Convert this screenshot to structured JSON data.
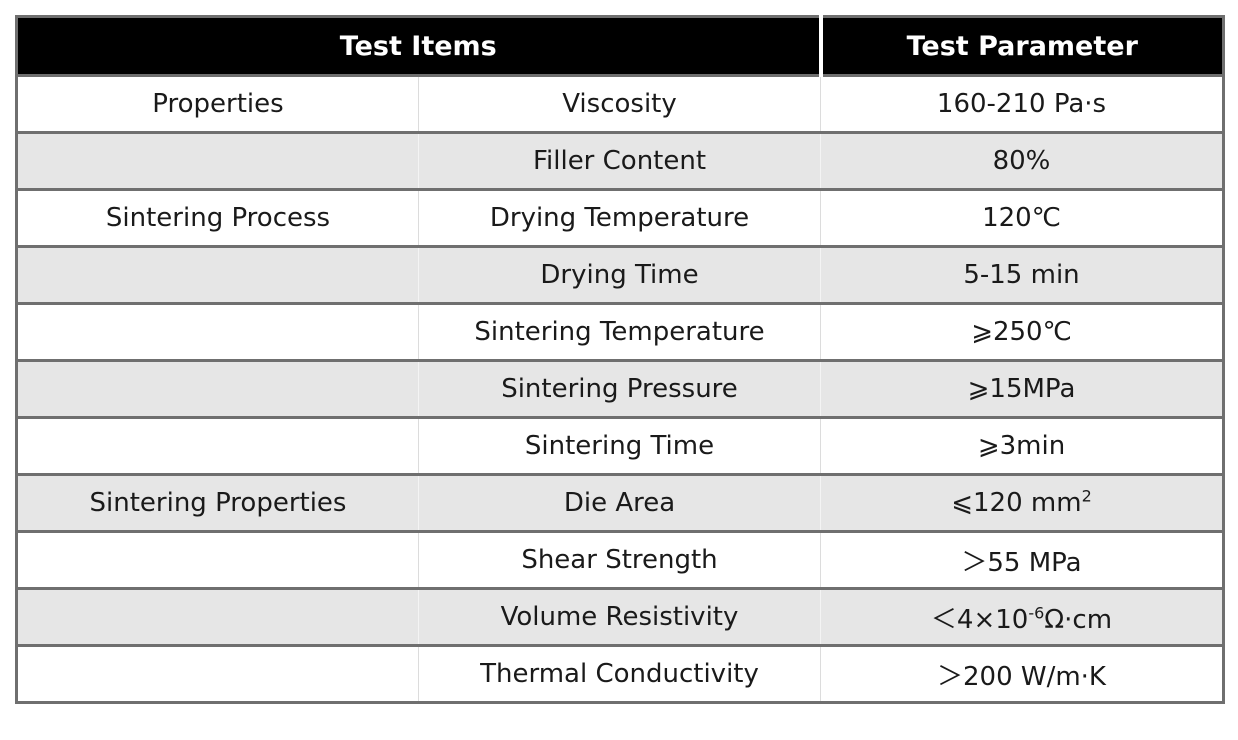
{
  "table": {
    "headers": [
      "Test Items",
      "Test Parameter"
    ],
    "rows": [
      {
        "category": "Properties",
        "item": "Viscosity",
        "parameter": "160-210 Pa·s"
      },
      {
        "category": "",
        "item": "Filler Content",
        "parameter": "80%"
      },
      {
        "category": "Sintering Process",
        "item": "Drying Temperature",
        "parameter": "120℃"
      },
      {
        "category": "",
        "item": "Drying Time",
        "parameter": "5-15 min"
      },
      {
        "category": "",
        "item": "Sintering Temperature",
        "parameter": "⩾250℃"
      },
      {
        "category": "",
        "item": "Sintering Pressure",
        "parameter": "⩾15MPa"
      },
      {
        "category": "",
        "item": "Sintering Time",
        "parameter": "⩾3min"
      },
      {
        "category": "Sintering Properties",
        "item": "Die Area",
        "parameter": "⩽120 mm",
        "parameter_sup": "2"
      },
      {
        "category": "",
        "item": "Shear Strength",
        "parameter": "＞55 MPa"
      },
      {
        "category": "",
        "item": "Volume Resistivity",
        "parameter": "＜4×10",
        "parameter_sup": "-6",
        "parameter_suffix": "Ω·cm"
      },
      {
        "category": "",
        "item": "Thermal Conductivity",
        "parameter": "＞200 W/m·K"
      }
    ]
  }
}
